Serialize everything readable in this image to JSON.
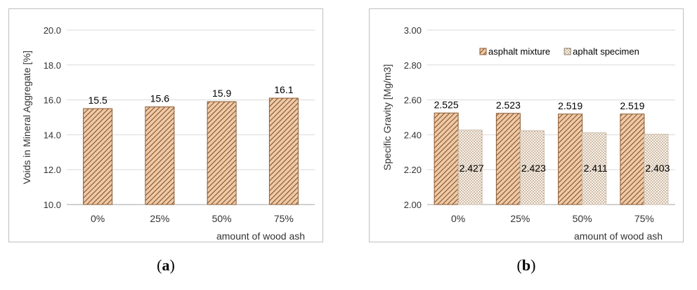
{
  "captions": {
    "a": "a",
    "b": "b"
  },
  "colors": {
    "hatch_line": "#7a4a22",
    "bar_fill": "#efc9a6",
    "dot": "#8a6a4a",
    "grid": "#d9d9d9",
    "axis_text": "#333333"
  },
  "chart_data": [
    {
      "type": "bar",
      "categories": [
        "0%",
        "25%",
        "50%",
        "75%"
      ],
      "series": [
        {
          "values": [
            15.5,
            15.6,
            15.9,
            16.1
          ],
          "labels": [
            "15.5",
            "15.6",
            "15.9",
            "16.1"
          ],
          "pattern": "diagonal-hatch"
        }
      ],
      "ylabel": "Voids in Mineral  Aggregate    [%]",
      "xlabel": "amount of wood ash",
      "ylim": [
        10.0,
        20.0
      ],
      "yticks": [
        "10.0",
        "12.0",
        "14.0",
        "16.0",
        "18.0",
        "20.0"
      ],
      "grid": true
    },
    {
      "type": "bar",
      "categories": [
        "0%",
        "25%",
        "50%",
        "75%"
      ],
      "series": [
        {
          "name": "asphalt mixture",
          "values": [
            2.525,
            2.523,
            2.519,
            2.519
          ],
          "labels": [
            "2.525",
            "2.523",
            "2.519",
            "2.519"
          ],
          "pattern": "diagonal-hatch"
        },
        {
          "name": "aphalt specimen",
          "values": [
            2.427,
            2.423,
            2.411,
            2.403
          ],
          "labels": [
            "2.427",
            "2.423",
            "2.411",
            "2.403"
          ],
          "pattern": "dots"
        }
      ],
      "ylabel": "Specific Gravity    [Mg/m3]",
      "xlabel": "amount of wood ash",
      "ylim": [
        2.0,
        3.0
      ],
      "yticks": [
        "2.00",
        "2.20",
        "2.40",
        "2.60",
        "2.80",
        "3.00"
      ],
      "grid": true,
      "legend": "top"
    }
  ]
}
